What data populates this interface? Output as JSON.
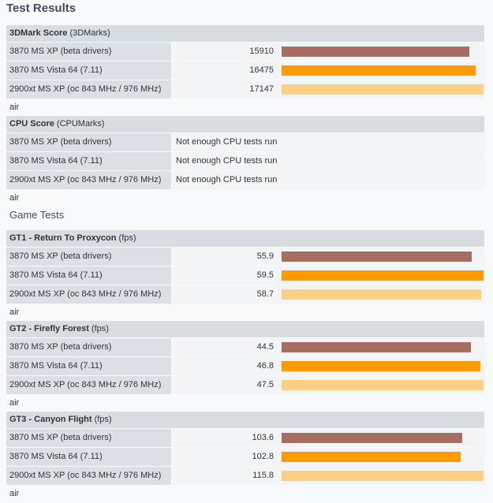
{
  "title": "Test Results",
  "game_heading": "Game Tests",
  "colors": [
    "#a96c61",
    "#ff9a00",
    "#ffcf83"
  ],
  "chart_data": [
    {
      "type": "bar",
      "title": "3DMark Score",
      "unit": "(3DMarks)",
      "categories": [
        "3870 MS XP (beta drivers)",
        "3870 MS Vista 64 (7.11)",
        "2900xt MS XP (oc 843 MHz / 976 MHz) air"
      ],
      "values": [
        15910,
        16475,
        17147
      ]
    },
    {
      "type": "table",
      "title": "CPU Score",
      "unit": "(CPUMarks)",
      "categories": [
        "3870 MS XP (beta drivers)",
        "3870 MS Vista 64 (7.11)",
        "2900xt MS XP (oc 843 MHz / 976 MHz) air"
      ],
      "texts": [
        "Not enough CPU tests run",
        "Not enough CPU tests run",
        "Not enough CPU tests run"
      ]
    },
    {
      "type": "bar",
      "title": "GT1 - Return To Proxycon",
      "unit": "(fps)",
      "categories": [
        "3870 MS XP (beta drivers)",
        "3870 MS Vista 64 (7.11)",
        "2900xt MS XP (oc 843 MHz / 976 MHz) air"
      ],
      "values": [
        55.9,
        59.5,
        58.7
      ]
    },
    {
      "type": "bar",
      "title": "GT2 - Firefly Forest",
      "unit": "(fps)",
      "categories": [
        "3870 MS XP (beta drivers)",
        "3870 MS Vista 64 (7.11)",
        "2900xt MS XP (oc 843 MHz / 976 MHz) air"
      ],
      "values": [
        44.5,
        46.8,
        47.5
      ]
    },
    {
      "type": "bar",
      "title": "GT3 - Canyon Flight",
      "unit": "(fps)",
      "categories": [
        "3870 MS XP (beta drivers)",
        "3870 MS Vista 64 (7.11)",
        "2900xt MS XP (oc 843 MHz / 976 MHz) air"
      ],
      "values": [
        103.6,
        102.8,
        115.8
      ]
    }
  ]
}
